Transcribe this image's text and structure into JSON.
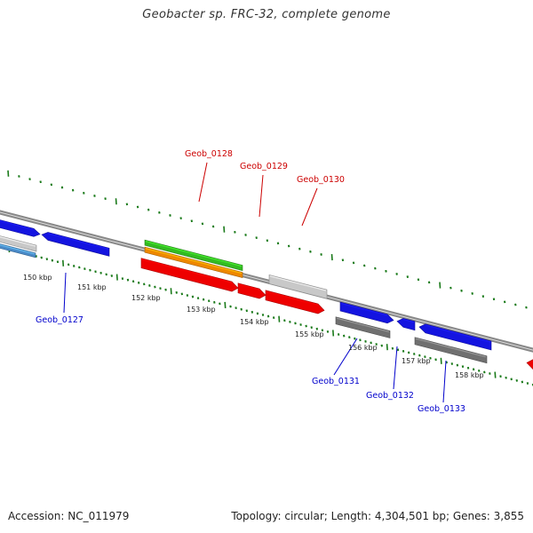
{
  "title": "Geobacter sp. FRC-32, complete genome",
  "footer": {
    "accession": "Accession: NC_011979",
    "summary": "Topology: circular; Length: 4,304,501 bp; Genes: 3,855"
  },
  "colors": {
    "backbone": "#888888",
    "tick": "#1a7a1a",
    "forward_label": "#cc0000",
    "reverse_label": "#0000cc",
    "red": "#ee0000",
    "blue": "#1414e0",
    "green": "#33bb22",
    "orange": "#ee8800",
    "light_gray": "#c8c8c8",
    "dark_gray": "#707070",
    "steel_blue": "#4a8ac8"
  },
  "scale": {
    "tick_labels": [
      "150 kbp",
      "151 kbp",
      "152 kbp",
      "153 kbp",
      "154 kbp",
      "155 kbp",
      "156 kbp",
      "157 kbp",
      "158 kbp"
    ]
  },
  "genes": [
    {
      "id": "g_left_fwd",
      "label": "",
      "strand": "+",
      "color": "blue"
    },
    {
      "id": "g_left_fwd2",
      "label": "",
      "strand": "+",
      "color": "blue"
    },
    {
      "id": "g_left_rev",
      "label": "",
      "strand": "-",
      "color": "light_gray"
    },
    {
      "id": "g_left_rev2",
      "label": "",
      "strand": "-",
      "color": "steel_blue"
    },
    {
      "id": "g0128_green",
      "label": "",
      "strand": "+",
      "color": "green"
    },
    {
      "id": "g0128_orange",
      "label": "",
      "strand": "+",
      "color": "orange"
    },
    {
      "id": "g0128",
      "label": "Geob_0128",
      "strand": "+",
      "color": "red"
    },
    {
      "id": "g0129",
      "label": "Geob_0129",
      "strand": "+",
      "color": "red"
    },
    {
      "id": "g0130_gray",
      "label": "",
      "strand": "+",
      "color": "light_gray"
    },
    {
      "id": "g0130",
      "label": "Geob_0130",
      "strand": "+",
      "color": "red"
    },
    {
      "id": "g0127",
      "label": "Geob_0127",
      "strand": "-",
      "color": "blue"
    },
    {
      "id": "g0131_blue",
      "label": "",
      "strand": "-",
      "color": "blue"
    },
    {
      "id": "g0131",
      "label": "Geob_0131",
      "strand": "-",
      "color": "dark_gray"
    },
    {
      "id": "g0132",
      "label": "Geob_0132",
      "strand": "-",
      "color": "blue"
    },
    {
      "id": "g0133_blue",
      "label": "",
      "strand": "-",
      "color": "blue"
    },
    {
      "id": "g0133",
      "label": "Geob_0133",
      "strand": "-",
      "color": "dark_gray"
    },
    {
      "id": "g_right_red",
      "label": "",
      "strand": "+",
      "color": "red"
    }
  ]
}
